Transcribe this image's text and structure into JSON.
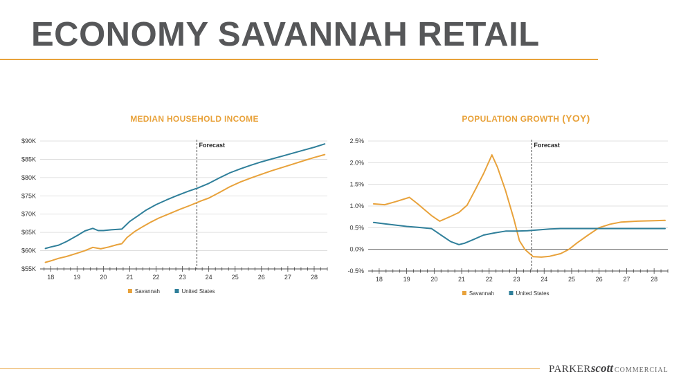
{
  "page": {
    "title": "ECONOMY SAVANNAH RETAIL",
    "logo": {
      "part1": "PARKER",
      "part2": "scott",
      "part3": "COMMERCIAL"
    }
  },
  "colors": {
    "accent": "#e8a23b",
    "savannah": "#e8a23b",
    "united_states": "#2f7f9a",
    "title": "#565759"
  },
  "chart_data": [
    {
      "type": "line",
      "title": "MEDIAN HOUSEHOLD INCOME",
      "xlabel": "",
      "ylabel": "",
      "xlim": [
        17.6,
        28.5
      ],
      "ylim": [
        55,
        90
      ],
      "x_ticks": [
        18,
        19,
        20,
        21,
        22,
        23,
        24,
        25,
        26,
        27,
        28
      ],
      "y_ticks": [
        55,
        60,
        65,
        70,
        75,
        80,
        85,
        90
      ],
      "y_tick_labels": [
        "$55K",
        "$60K",
        "$65K",
        "$70K",
        "$75K",
        "$80K",
        "$85K",
        "$90K"
      ],
      "grid": true,
      "legend": "bottom",
      "annotation": {
        "x": 23.55,
        "label": "Forecast"
      },
      "series": [
        {
          "name": "Savannah",
          "color": "#e8a23b",
          "x": [
            17.8,
            18.0,
            18.3,
            18.6,
            19.0,
            19.3,
            19.6,
            19.9,
            20.2,
            20.5,
            20.7,
            20.9,
            21.2,
            21.5,
            21.8,
            22.1,
            22.5,
            22.9,
            23.3,
            23.7,
            24.0,
            24.4,
            24.8,
            25.2,
            25.6,
            26.0,
            26.4,
            26.8,
            27.2,
            27.6,
            28.0,
            28.4
          ],
          "values": [
            56.8,
            57.2,
            57.9,
            58.4,
            59.3,
            60.0,
            60.9,
            60.5,
            61.0,
            61.6,
            61.9,
            63.6,
            65.3,
            66.6,
            67.8,
            68.9,
            70.1,
            71.3,
            72.4,
            73.6,
            74.4,
            75.9,
            77.5,
            78.8,
            79.9,
            80.9,
            81.9,
            82.8,
            83.7,
            84.6,
            85.5,
            86.3
          ]
        },
        {
          "name": "United States",
          "color": "#2f7f9a",
          "x": [
            17.8,
            18.0,
            18.3,
            18.6,
            19.0,
            19.3,
            19.6,
            19.8,
            20.0,
            20.3,
            20.7,
            21.0,
            21.3,
            21.6,
            22.0,
            22.4,
            22.8,
            23.2,
            23.6,
            24.0,
            24.4,
            24.8,
            25.2,
            25.6,
            26.0,
            26.4,
            26.8,
            27.2,
            27.6,
            28.0,
            28.4
          ],
          "values": [
            60.6,
            61.0,
            61.5,
            62.5,
            64.1,
            65.4,
            66.1,
            65.5,
            65.5,
            65.7,
            65.9,
            68.0,
            69.5,
            71.0,
            72.6,
            73.9,
            75.1,
            76.2,
            77.2,
            78.4,
            79.9,
            81.3,
            82.4,
            83.4,
            84.3,
            85.1,
            85.9,
            86.7,
            87.5,
            88.3,
            89.2
          ]
        }
      ]
    },
    {
      "type": "line",
      "title": "POPULATION GROWTH",
      "title_suffix": "(YOY)",
      "xlabel": "",
      "ylabel": "",
      "xlim": [
        17.6,
        28.5
      ],
      "ylim": [
        -0.5,
        2.5
      ],
      "x_ticks": [
        18,
        19,
        20,
        21,
        22,
        23,
        24,
        25,
        26,
        27,
        28
      ],
      "y_ticks": [
        -0.5,
        0.0,
        0.5,
        1.0,
        1.5,
        2.0,
        2.5
      ],
      "y_tick_labels": [
        "-0.5%",
        "0.0%",
        "0.5%",
        "1.0%",
        "1.5%",
        "2.0%",
        "2.5%"
      ],
      "grid": true,
      "legend": "bottom",
      "annotation": {
        "x": 23.55,
        "label": "Forecast"
      },
      "series": [
        {
          "name": "Savannah",
          "color": "#e8a23b",
          "x": [
            17.8,
            18.2,
            18.6,
            19.1,
            19.4,
            19.9,
            20.2,
            20.6,
            20.9,
            21.2,
            21.5,
            21.8,
            22.1,
            22.3,
            22.6,
            22.9,
            23.1,
            23.3,
            23.6,
            23.9,
            24.2,
            24.6,
            24.9,
            25.2,
            25.6,
            26.0,
            26.4,
            26.8,
            27.4,
            28.0,
            28.4
          ],
          "values": [
            1.05,
            1.03,
            1.1,
            1.2,
            1.05,
            0.78,
            0.65,
            0.76,
            0.85,
            1.02,
            1.38,
            1.75,
            2.18,
            1.9,
            1.35,
            0.7,
            0.2,
            0.0,
            -0.17,
            -0.18,
            -0.16,
            -0.1,
            0.0,
            0.15,
            0.33,
            0.5,
            0.58,
            0.63,
            0.65,
            0.66,
            0.67
          ]
        },
        {
          "name": "United States",
          "color": "#2f7f9a",
          "x": [
            17.8,
            18.2,
            18.6,
            19.0,
            19.4,
            19.9,
            20.2,
            20.6,
            20.9,
            21.1,
            21.4,
            21.8,
            22.2,
            22.6,
            23.0,
            23.4,
            23.8,
            24.2,
            24.6,
            25.0,
            25.4,
            25.8,
            26.2,
            26.6,
            27.0,
            27.4,
            27.8,
            28.4
          ],
          "values": [
            0.62,
            0.59,
            0.56,
            0.53,
            0.51,
            0.48,
            0.35,
            0.18,
            0.11,
            0.14,
            0.22,
            0.33,
            0.38,
            0.42,
            0.42,
            0.43,
            0.45,
            0.47,
            0.48,
            0.48,
            0.48,
            0.48,
            0.48,
            0.48,
            0.48,
            0.48,
            0.48,
            0.48
          ]
        }
      ]
    }
  ]
}
